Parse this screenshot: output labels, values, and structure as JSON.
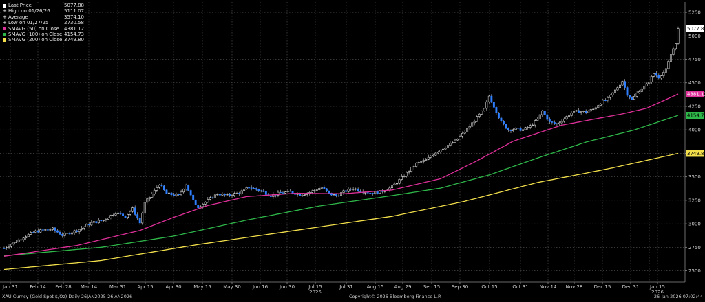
{
  "legend": [
    {
      "label": "Last Price",
      "value": "5077.88",
      "color": "#ffffff",
      "glyph": "box"
    },
    {
      "label": "High on 01/26/26",
      "value": "5111.07",
      "color": "#ffffff",
      "glyph": "plus"
    },
    {
      "label": "Average",
      "value": "3574.10",
      "color": "#ffffff",
      "glyph": "plus"
    },
    {
      "label": "Low on 01/27/25",
      "value": "2730.58",
      "color": "#ffffff",
      "glyph": "plus"
    },
    {
      "label": "SMAVG (50)  on Close",
      "value": "4381.12",
      "color": "#e0309a",
      "glyph": "box"
    },
    {
      "label": "SMAVG (100)  on Close",
      "value": "4154.73",
      "color": "#2fb84a",
      "glyph": "box"
    },
    {
      "label": "SMAVG (200)  on Close",
      "value": "3749.80",
      "color": "#f2df4b",
      "glyph": "box"
    }
  ],
  "footer": {
    "left": "XAU Curncy (Gold Spot  $/Oz) Daily 26JAN2025-26JAN2026",
    "center": "Copyright© 2026 Bloomberg Finance L.P.",
    "right": "26-Jan-2026 07:02:44"
  },
  "chart_data": {
    "type": "candlestick",
    "title": "XAU Curncy (Gold Spot $/Oz) Daily",
    "y_axis_position": "right",
    "ylim": [
      2380,
      5360
    ],
    "y_ticks": [
      2500,
      2750,
      3000,
      3250,
      3500,
      3750,
      4000,
      4250,
      4500,
      4750,
      5000,
      5250
    ],
    "x_tick_labels": [
      "Jan 31",
      "Feb 14",
      "Feb 28",
      "Mar 14",
      "Mar 31",
      "Apr 15",
      "Apr 30",
      "May 15",
      "May 30",
      "Jun 16",
      "Jun 30",
      "Jul 15",
      "Jul 31",
      "Aug 15",
      "Aug 29",
      "Sep 15",
      "Sep 30",
      "Oct 15",
      "Oct 31",
      "Nov 14",
      "Nov 28",
      "Dec 15",
      "Dec 31",
      "Jan 15"
    ],
    "year_labels": [
      {
        "after_tick": "Jul 15",
        "label": "2025"
      },
      {
        "after_tick": "Jan 15",
        "label": "2026"
      }
    ],
    "grid": true,
    "legend_position": "top-left",
    "colors": {
      "up": "#ffffff",
      "down": "#2f7fff",
      "sma50": "#e0309a",
      "sma100": "#2fb84a",
      "sma200": "#f2df4b"
    },
    "close_points": [
      {
        "t": 0,
        "v": 2740
      },
      {
        "t": 8,
        "v": 2860
      },
      {
        "t": 13,
        "v": 2920
      },
      {
        "t": 20,
        "v": 2945
      },
      {
        "t": 24,
        "v": 2880
      },
      {
        "t": 30,
        "v": 2930
      },
      {
        "t": 36,
        "v": 3010
      },
      {
        "t": 41,
        "v": 3040
      },
      {
        "t": 46,
        "v": 3120
      },
      {
        "t": 50,
        "v": 3080
      },
      {
        "t": 53,
        "v": 3160
      },
      {
        "t": 56,
        "v": 3010
      },
      {
        "t": 58,
        "v": 3220
      },
      {
        "t": 62,
        "v": 3350
      },
      {
        "t": 64,
        "v": 3425
      },
      {
        "t": 67,
        "v": 3320
      },
      {
        "t": 72,
        "v": 3300
      },
      {
        "t": 75,
        "v": 3420
      },
      {
        "t": 78,
        "v": 3240
      },
      {
        "t": 80,
        "v": 3180
      },
      {
        "t": 84,
        "v": 3250
      },
      {
        "t": 88,
        "v": 3320
      },
      {
        "t": 92,
        "v": 3300
      },
      {
        "t": 97,
        "v": 3330
      },
      {
        "t": 101,
        "v": 3390
      },
      {
        "t": 106,
        "v": 3350
      },
      {
        "t": 110,
        "v": 3300
      },
      {
        "t": 114,
        "v": 3330
      },
      {
        "t": 118,
        "v": 3340
      },
      {
        "t": 122,
        "v": 3310
      },
      {
        "t": 126,
        "v": 3335
      },
      {
        "t": 131,
        "v": 3390
      },
      {
        "t": 134,
        "v": 3320
      },
      {
        "t": 137,
        "v": 3300
      },
      {
        "t": 140,
        "v": 3340
      },
      {
        "t": 144,
        "v": 3380
      },
      {
        "t": 147,
        "v": 3350
      },
      {
        "t": 151,
        "v": 3330
      },
      {
        "t": 155,
        "v": 3340
      },
      {
        "t": 159,
        "v": 3380
      },
      {
        "t": 162,
        "v": 3440
      },
      {
        "t": 166,
        "v": 3540
      },
      {
        "t": 170,
        "v": 3640
      },
      {
        "t": 174,
        "v": 3680
      },
      {
        "t": 178,
        "v": 3760
      },
      {
        "t": 182,
        "v": 3820
      },
      {
        "t": 186,
        "v": 3880
      },
      {
        "t": 190,
        "v": 3980
      },
      {
        "t": 194,
        "v": 4100
      },
      {
        "t": 198,
        "v": 4220
      },
      {
        "t": 200,
        "v": 4360
      },
      {
        "t": 202,
        "v": 4250
      },
      {
        "t": 205,
        "v": 4080
      },
      {
        "t": 208,
        "v": 4000
      },
      {
        "t": 211,
        "v": 4010
      },
      {
        "t": 214,
        "v": 4000
      },
      {
        "t": 217,
        "v": 4040
      },
      {
        "t": 220,
        "v": 4110
      },
      {
        "t": 222,
        "v": 4200
      },
      {
        "t": 225,
        "v": 4080
      },
      {
        "t": 228,
        "v": 4060
      },
      {
        "t": 231,
        "v": 4120
      },
      {
        "t": 234,
        "v": 4180
      },
      {
        "t": 237,
        "v": 4200
      },
      {
        "t": 240,
        "v": 4190
      },
      {
        "t": 243,
        "v": 4220
      },
      {
        "t": 246,
        "v": 4290
      },
      {
        "t": 249,
        "v": 4330
      },
      {
        "t": 252,
        "v": 4420
      },
      {
        "t": 255,
        "v": 4520
      },
      {
        "t": 257,
        "v": 4380
      },
      {
        "t": 259,
        "v": 4320
      },
      {
        "t": 262,
        "v": 4420
      },
      {
        "t": 265,
        "v": 4480
      },
      {
        "t": 268,
        "v": 4600
      },
      {
        "t": 270,
        "v": 4560
      },
      {
        "t": 273,
        "v": 4640
      },
      {
        "t": 275,
        "v": 4800
      },
      {
        "t": 277,
        "v": 4930
      },
      {
        "t": 278,
        "v": 5077.88
      }
    ],
    "sma50_points": [
      {
        "t": 0,
        "v": 2655
      },
      {
        "t": 30,
        "v": 2770
      },
      {
        "t": 56,
        "v": 2930
      },
      {
        "t": 70,
        "v": 3070
      },
      {
        "t": 84,
        "v": 3195
      },
      {
        "t": 100,
        "v": 3290
      },
      {
        "t": 120,
        "v": 3325
      },
      {
        "t": 140,
        "v": 3320
      },
      {
        "t": 160,
        "v": 3360
      },
      {
        "t": 180,
        "v": 3480
      },
      {
        "t": 195,
        "v": 3670
      },
      {
        "t": 210,
        "v": 3880
      },
      {
        "t": 230,
        "v": 4050
      },
      {
        "t": 255,
        "v": 4170
      },
      {
        "t": 265,
        "v": 4230
      },
      {
        "t": 278,
        "v": 4381.12
      }
    ],
    "sma100_points": [
      {
        "t": 0,
        "v": 2660
      },
      {
        "t": 40,
        "v": 2750
      },
      {
        "t": 70,
        "v": 2870
      },
      {
        "t": 100,
        "v": 3040
      },
      {
        "t": 130,
        "v": 3190
      },
      {
        "t": 160,
        "v": 3300
      },
      {
        "t": 180,
        "v": 3380
      },
      {
        "t": 200,
        "v": 3520
      },
      {
        "t": 220,
        "v": 3700
      },
      {
        "t": 240,
        "v": 3870
      },
      {
        "t": 260,
        "v": 4000
      },
      {
        "t": 278,
        "v": 4154.73
      }
    ],
    "sma200_points": [
      {
        "t": 0,
        "v": 2515
      },
      {
        "t": 40,
        "v": 2610
      },
      {
        "t": 80,
        "v": 2780
      },
      {
        "t": 120,
        "v": 2930
      },
      {
        "t": 160,
        "v": 3080
      },
      {
        "t": 190,
        "v": 3240
      },
      {
        "t": 220,
        "v": 3440
      },
      {
        "t": 250,
        "v": 3590
      },
      {
        "t": 278,
        "v": 3749.8
      }
    ],
    "last_price_tags": [
      {
        "value": 5077.88,
        "bg": "#ffffff",
        "fg": "#000000"
      },
      {
        "value": 4381.12,
        "bg": "#e0309a",
        "fg": "#ffffff"
      },
      {
        "value": 4154.73,
        "bg": "#2fb84a",
        "fg": "#000000"
      },
      {
        "value": 3749.8,
        "bg": "#f2df4b",
        "fg": "#000000"
      }
    ]
  }
}
